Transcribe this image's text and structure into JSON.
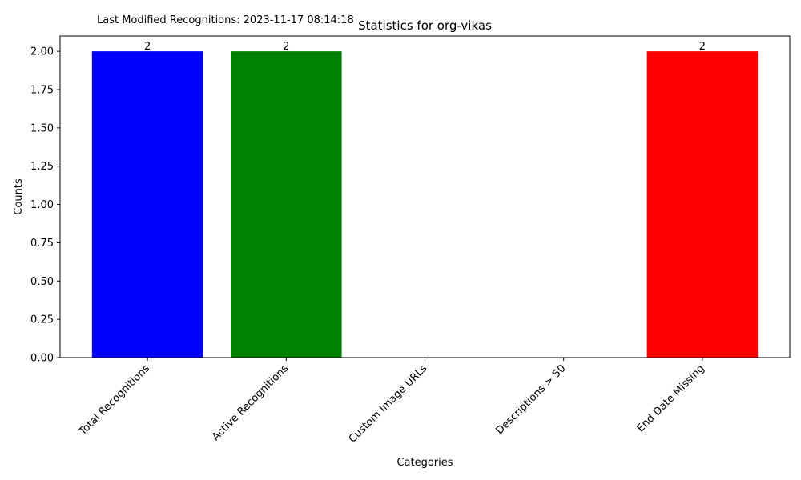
{
  "annotation": "Last Modified Recognitions: 2023-11-17 08:14:18",
  "chart_data": {
    "type": "bar",
    "title": "Statistics for org-vikas",
    "xlabel": "Categories",
    "ylabel": "Counts",
    "categories": [
      "Total Recognitions",
      "Active Recognitions",
      "Custom Image URLs",
      "Descriptions > 50",
      "End Date Missing"
    ],
    "values": [
      2,
      2,
      0,
      0,
      2
    ],
    "colors": [
      "#0000ff",
      "#008000",
      "#ffa500",
      "#800080",
      "#ff0000"
    ],
    "data_labels": [
      "2",
      "2",
      "",
      "",
      "2"
    ],
    "ylim": [
      0,
      2.1
    ],
    "yticks": [
      "0.00",
      "0.25",
      "0.50",
      "0.75",
      "1.00",
      "1.25",
      "1.50",
      "1.75",
      "2.00"
    ],
    "grid": false,
    "legend": "none"
  }
}
